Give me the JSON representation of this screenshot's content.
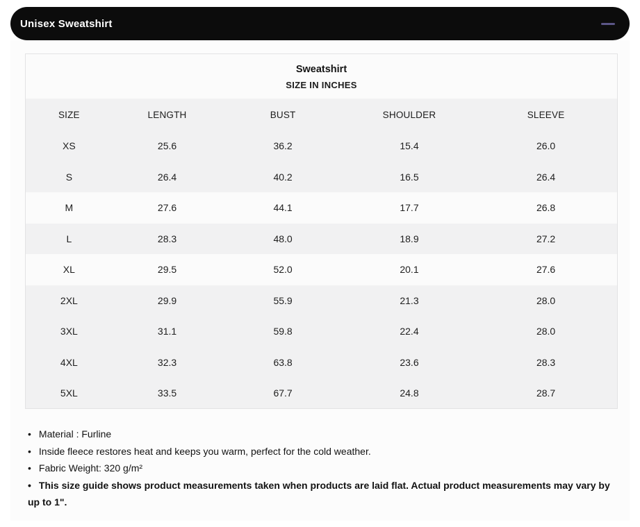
{
  "accordion": {
    "title": "Unisex Sweatshirt",
    "toggle_icon": "minus-icon"
  },
  "size_chart": {
    "title": "Sweatshirt",
    "subtitle": "SIZE IN INCHES",
    "columns": {
      "size": "SIZE",
      "length": "LENGTH",
      "bust": "BUST",
      "shoulder": "SHOULDER",
      "sleeve": "SLEEVE"
    },
    "rows": [
      {
        "size": "XS",
        "length": "25.6",
        "bust": "36.2",
        "shoulder": "15.4",
        "sleeve": "26.0"
      },
      {
        "size": "S",
        "length": "26.4",
        "bust": "40.2",
        "shoulder": "16.5",
        "sleeve": "26.4"
      },
      {
        "size": "M",
        "length": "27.6",
        "bust": "44.1",
        "shoulder": "17.7",
        "sleeve": "26.8"
      },
      {
        "size": "L",
        "length": "28.3",
        "bust": "48.0",
        "shoulder": "18.9",
        "sleeve": "27.2"
      },
      {
        "size": "XL",
        "length": "29.5",
        "bust": "52.0",
        "shoulder": "20.1",
        "sleeve": "27.6"
      },
      {
        "size": "2XL",
        "length": "29.9",
        "bust": "55.9",
        "shoulder": "21.3",
        "sleeve": "28.0"
      },
      {
        "size": "3XL",
        "length": "31.1",
        "bust": "59.8",
        "shoulder": "22.4",
        "sleeve": "28.0"
      },
      {
        "size": "4XL",
        "length": "32.3",
        "bust": "63.8",
        "shoulder": "23.6",
        "sleeve": "28.3"
      },
      {
        "size": "5XL",
        "length": "33.5",
        "bust": "67.7",
        "shoulder": "24.8",
        "sleeve": "28.7"
      }
    ]
  },
  "notes": {
    "bullet": "•",
    "items": [
      {
        "text": "Material : Furline"
      },
      {
        "text": "Inside fleece restores heat and keeps you warm, perfect for the cold weather."
      },
      {
        "text": "Fabric Weight: 320 g/m²"
      },
      {
        "text": "This size guide shows product measurements taken when products are laid flat. Actual product measurements may vary by up to 1\"."
      }
    ]
  },
  "colors": {
    "header_bg": "#0c0c0c",
    "header_text": "#ffffff",
    "toggle_accent": "#5b5687",
    "row_gray": "#f1f1f2",
    "row_light": "#fbfbfb",
    "panel_bg": "#fcfcfc"
  }
}
